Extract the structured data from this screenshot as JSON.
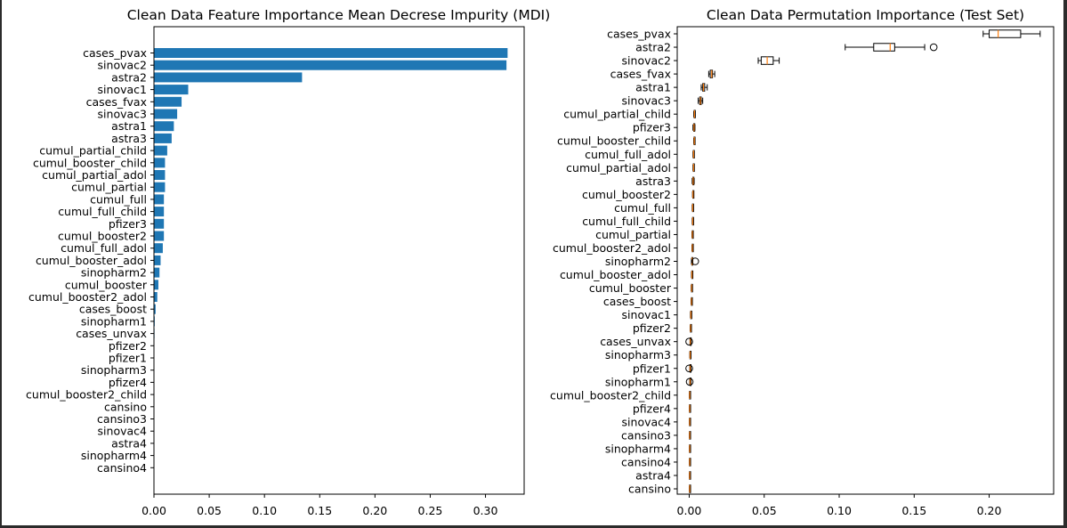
{
  "chart_data": [
    {
      "type": "bar",
      "orientation": "horizontal",
      "title": "Clean Data Feature Importance Mean Decrese Impurity (MDI)",
      "xlabel": "",
      "ylabel": "",
      "xlim": [
        0,
        0.335
      ],
      "xticks": [
        "0.00",
        "0.05",
        "0.10",
        "0.15",
        "0.20",
        "0.25",
        "0.30"
      ],
      "grid": false,
      "bar_color": "#1f77b4",
      "categories": [
        "cases_pvax",
        "sinovac2",
        "astra2",
        "sinovac1",
        "cases_fvax",
        "sinovac3",
        "astra1",
        "astra3",
        "cumul_partial_child",
        "cumul_booster_child",
        "cumul_partial_adol",
        "cumul_partial",
        "cumul_full",
        "cumul_full_child",
        "pfizer3",
        "cumul_booster2",
        "cumul_full_adol",
        "cumul_booster_adol",
        "sinopharm2",
        "cumul_booster",
        "cumul_booster2_adol",
        "cases_boost",
        "sinopharm1",
        "cases_unvax",
        "pfizer2",
        "pfizer1",
        "sinopharm3",
        "pfizer4",
        "cumul_booster2_child",
        "cansino",
        "cansino3",
        "sinovac4",
        "astra4",
        "sinopharm4",
        "cansino4"
      ],
      "values": [
        0.32,
        0.319,
        0.134,
        0.031,
        0.025,
        0.021,
        0.018,
        0.016,
        0.012,
        0.01,
        0.01,
        0.01,
        0.009,
        0.009,
        0.009,
        0.009,
        0.008,
        0.006,
        0.005,
        0.004,
        0.003,
        0.0015,
        0.0007,
        0.0005,
        0.0004,
        0.0003,
        0.0003,
        0.0002,
        0.0001,
        0.0001,
        0.0001,
        0.0001,
        0.0001,
        0.0001,
        0.0001
      ]
    },
    {
      "type": "boxplot",
      "orientation": "horizontal",
      "title": "Clean Data Permutation Importance (Test Set)",
      "xlabel": "",
      "ylabel": "",
      "xlim": [
        -0.008,
        0.243
      ],
      "xticks": [
        "0.00",
        "0.05",
        "0.10",
        "0.15",
        "0.20"
      ],
      "grid": false,
      "box_color": "#000000",
      "median_color": "#ff7f0e",
      "categories": [
        "cases_pvax",
        "astra2",
        "sinovac2",
        "cases_fvax",
        "astra1",
        "sinovac3",
        "cumul_partial_child",
        "pfizer3",
        "cumul_booster_child",
        "cumul_full_adol",
        "cumul_partial_adol",
        "astra3",
        "cumul_booster2",
        "cumul_full",
        "cumul_full_child",
        "cumul_partial",
        "cumul_booster2_adol",
        "sinopharm2",
        "cumul_booster_adol",
        "cumul_booster",
        "cases_boost",
        "sinovac1",
        "pfizer2",
        "cases_unvax",
        "sinopharm3",
        "pfizer1",
        "sinopharm1",
        "cumul_booster2_child",
        "pfizer4",
        "sinovac4",
        "cansino3",
        "sinopharm4",
        "cansino4",
        "astra4",
        "cansino"
      ],
      "boxes": [
        {
          "whislo": 0.196,
          "q1": 0.2,
          "med": 0.206,
          "q3": 0.221,
          "whishi": 0.234,
          "fliers": []
        },
        {
          "whislo": 0.104,
          "q1": 0.123,
          "med": 0.134,
          "q3": 0.137,
          "whishi": 0.157,
          "fliers": [
            0.163
          ]
        },
        {
          "whislo": 0.046,
          "q1": 0.048,
          "med": 0.052,
          "q3": 0.056,
          "whishi": 0.06,
          "fliers": []
        },
        {
          "whislo": 0.013,
          "q1": 0.014,
          "med": 0.015,
          "q3": 0.0155,
          "whishi": 0.017,
          "fliers": []
        },
        {
          "whislo": 0.008,
          "q1": 0.009,
          "med": 0.0095,
          "q3": 0.0103,
          "whishi": 0.012,
          "fliers": []
        },
        {
          "whislo": 0.006,
          "q1": 0.007,
          "med": 0.0075,
          "q3": 0.008,
          "whishi": 0.009,
          "fliers": []
        },
        {
          "whislo": 0.003,
          "q1": 0.0033,
          "med": 0.0035,
          "q3": 0.0037,
          "whishi": 0.004,
          "fliers": []
        },
        {
          "whislo": 0.0025,
          "q1": 0.003,
          "med": 0.0032,
          "q3": 0.0035,
          "whishi": 0.0038,
          "fliers": []
        },
        {
          "whislo": 0.003,
          "q1": 0.0032,
          "med": 0.0034,
          "q3": 0.0036,
          "whishi": 0.0038,
          "fliers": []
        },
        {
          "whislo": 0.0025,
          "q1": 0.0027,
          "med": 0.0029,
          "q3": 0.0031,
          "whishi": 0.0033,
          "fliers": []
        },
        {
          "whislo": 0.0025,
          "q1": 0.0027,
          "med": 0.0029,
          "q3": 0.0031,
          "whishi": 0.0033,
          "fliers": []
        },
        {
          "whislo": 0.002,
          "q1": 0.0024,
          "med": 0.0026,
          "q3": 0.0029,
          "whishi": 0.0033,
          "fliers": []
        },
        {
          "whislo": 0.0022,
          "q1": 0.0024,
          "med": 0.0025,
          "q3": 0.0027,
          "whishi": 0.0029,
          "fliers": []
        },
        {
          "whislo": 0.002,
          "q1": 0.0022,
          "med": 0.0023,
          "q3": 0.0025,
          "whishi": 0.0027,
          "fliers": []
        },
        {
          "whislo": 0.002,
          "q1": 0.0022,
          "med": 0.0023,
          "q3": 0.0025,
          "whishi": 0.0027,
          "fliers": []
        },
        {
          "whislo": 0.0018,
          "q1": 0.002,
          "med": 0.0021,
          "q3": 0.0023,
          "whishi": 0.0025,
          "fliers": []
        },
        {
          "whislo": 0.0018,
          "q1": 0.002,
          "med": 0.0021,
          "q3": 0.0023,
          "whishi": 0.0025,
          "fliers": []
        },
        {
          "whislo": 0.0015,
          "q1": 0.0017,
          "med": 0.0019,
          "q3": 0.0021,
          "whishi": 0.0023,
          "fliers": [
            0.004
          ]
        },
        {
          "whislo": 0.0015,
          "q1": 0.0017,
          "med": 0.0018,
          "q3": 0.002,
          "whishi": 0.0022,
          "fliers": []
        },
        {
          "whislo": 0.0013,
          "q1": 0.0015,
          "med": 0.0016,
          "q3": 0.0018,
          "whishi": 0.002,
          "fliers": []
        },
        {
          "whislo": 0.0012,
          "q1": 0.0014,
          "med": 0.0015,
          "q3": 0.0017,
          "whishi": 0.0019,
          "fliers": []
        },
        {
          "whislo": 0.0008,
          "q1": 0.001,
          "med": 0.0011,
          "q3": 0.0013,
          "whishi": 0.0015,
          "fliers": []
        },
        {
          "whislo": 0.0006,
          "q1": 0.0008,
          "med": 0.0009,
          "q3": 0.0011,
          "whishi": 0.0013,
          "fliers": []
        },
        {
          "whislo": 0.0005,
          "q1": 0.0006,
          "med": 0.0007,
          "q3": 0.0008,
          "whishi": 0.001,
          "fliers": [
            0.0
          ]
        },
        {
          "whislo": 0.0004,
          "q1": 0.0005,
          "med": 0.0006,
          "q3": 0.0007,
          "whishi": 0.0008,
          "fliers": []
        },
        {
          "whislo": 0.0004,
          "q1": 0.0005,
          "med": 0.0006,
          "q3": 0.0007,
          "whishi": 0.0008,
          "fliers": [
            0.0
          ]
        },
        {
          "whislo": 0.0003,
          "q1": 0.0005,
          "med": 0.0006,
          "q3": 0.0007,
          "whishi": 0.0008,
          "fliers": [
            0.0003
          ]
        },
        {
          "whislo": 0.0001,
          "q1": 0.0002,
          "med": 0.0003,
          "q3": 0.0004,
          "whishi": 0.0005,
          "fliers": []
        },
        {
          "whislo": 0.0001,
          "q1": 0.0002,
          "med": 0.0003,
          "q3": 0.0004,
          "whishi": 0.0005,
          "fliers": []
        },
        {
          "whislo": 0.0001,
          "q1": 0.0002,
          "med": 0.0003,
          "q3": 0.0004,
          "whishi": 0.0005,
          "fliers": []
        },
        {
          "whislo": 0.0001,
          "q1": 0.0002,
          "med": 0.0003,
          "q3": 0.0004,
          "whishi": 0.0005,
          "fliers": []
        },
        {
          "whislo": 0.0001,
          "q1": 0.0002,
          "med": 0.0003,
          "q3": 0.0004,
          "whishi": 0.0005,
          "fliers": []
        },
        {
          "whislo": 0.0001,
          "q1": 0.0002,
          "med": 0.0003,
          "q3": 0.0004,
          "whishi": 0.0005,
          "fliers": []
        },
        {
          "whislo": 0.0001,
          "q1": 0.0002,
          "med": 0.0003,
          "q3": 0.0004,
          "whishi": 0.0005,
          "fliers": []
        },
        {
          "whislo": 0.0001,
          "q1": 0.0002,
          "med": 0.0003,
          "q3": 0.0004,
          "whishi": 0.0005,
          "fliers": []
        }
      ]
    }
  ]
}
